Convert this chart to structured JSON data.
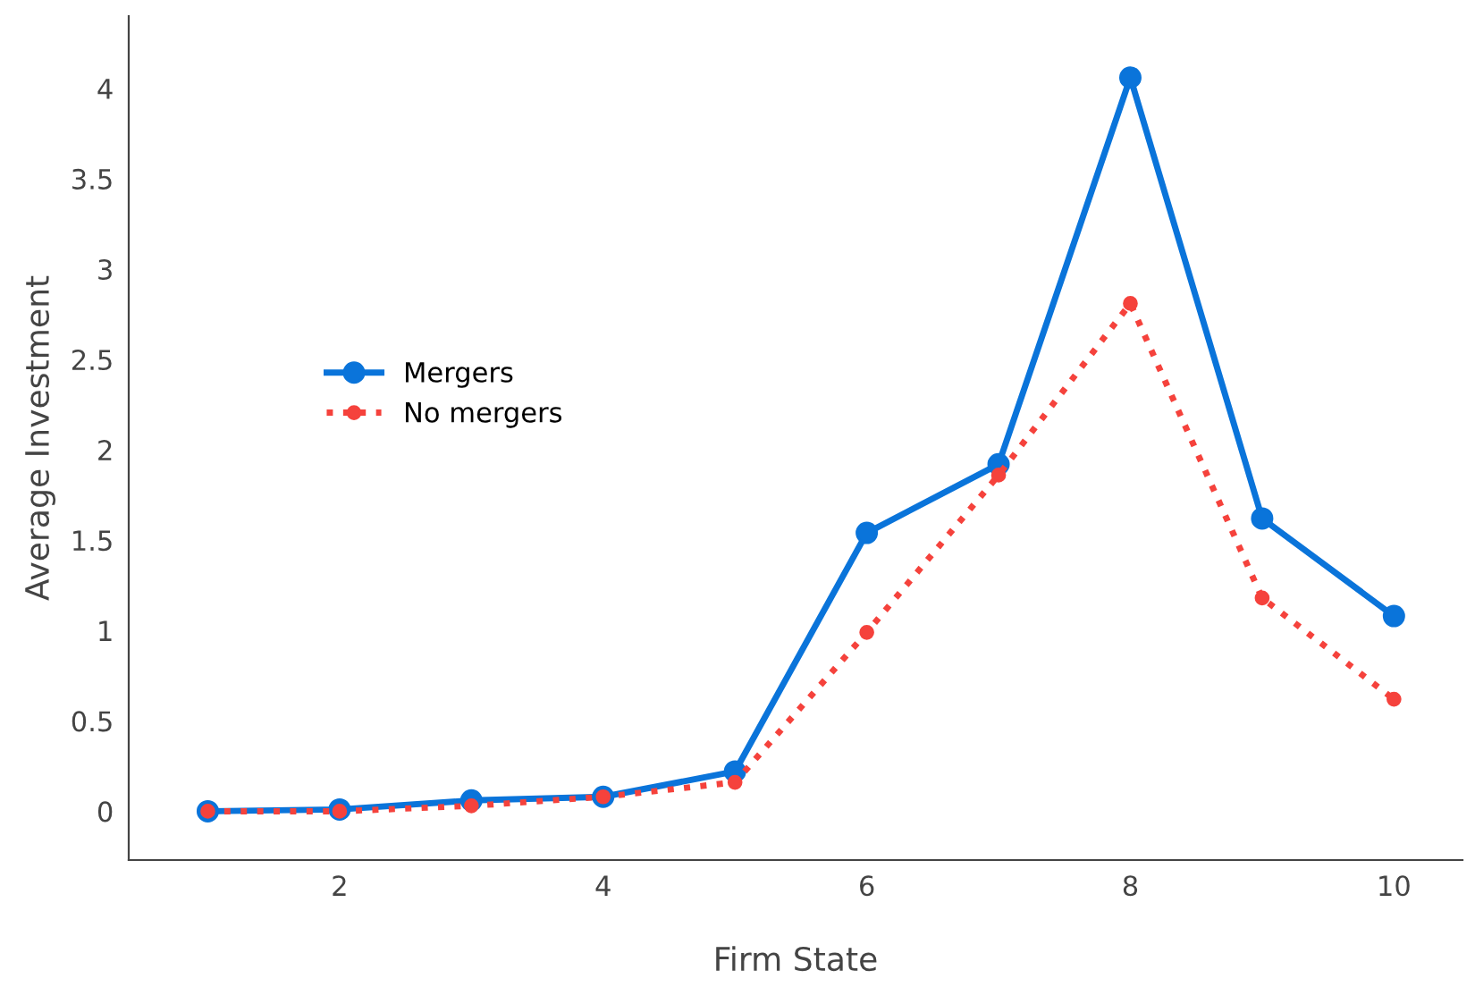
{
  "chart_data": {
    "type": "line",
    "xlabel": "Firm State",
    "ylabel": "Average Investment",
    "x": [
      1,
      2,
      3,
      4,
      5,
      6,
      7,
      8,
      9,
      10
    ],
    "series": [
      {
        "name": "Mergers",
        "color": "#0a74da",
        "line_style": "solid",
        "values": [
          0,
          0.01,
          0.06,
          0.08,
          0.22,
          1.54,
          1.92,
          4.06,
          1.62,
          1.08
        ]
      },
      {
        "name": "No mergers",
        "color": "#f5423c",
        "line_style": "dotted",
        "values": [
          0,
          0,
          0.03,
          0.08,
          0.16,
          0.99,
          1.86,
          2.81,
          1.18,
          0.62
        ]
      }
    ],
    "xlim": [
      0.4,
      10.52
    ],
    "ylim": [
      -0.27,
      4.4
    ],
    "xticks": [
      2,
      4,
      6,
      8,
      10
    ],
    "yticks": [
      0,
      0.5,
      1,
      1.5,
      2,
      2.5,
      3,
      3.5,
      4
    ],
    "marker": "circle",
    "grid": false,
    "legend": "left"
  }
}
